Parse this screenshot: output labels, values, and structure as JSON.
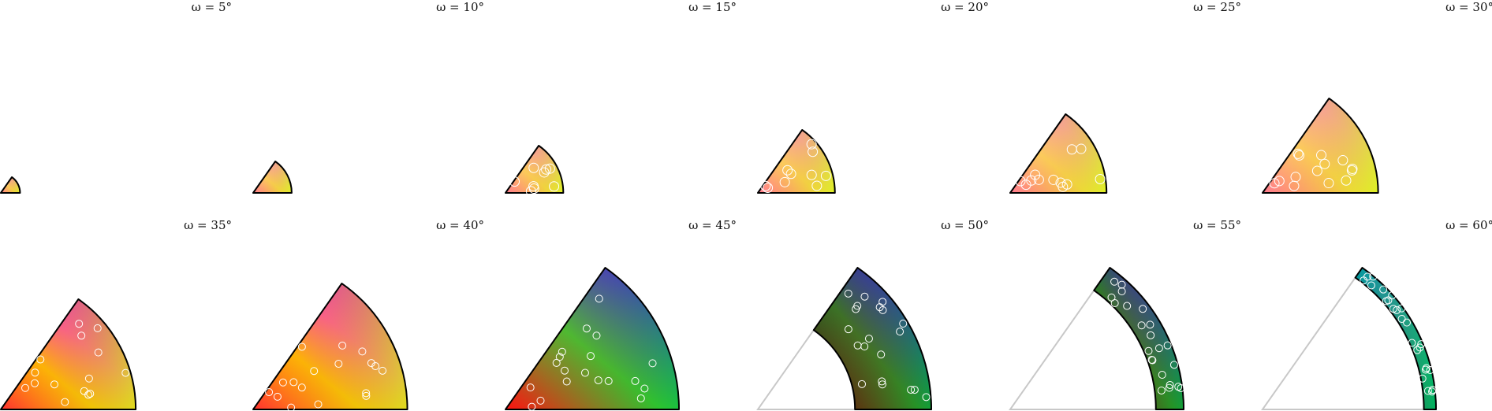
{
  "chart_data": {
    "type": "scatter",
    "description_of_layout": "grid",
    "grid_rows": 2,
    "grid_cols": 6,
    "panels": [
      {
        "title": "ω = 5°",
        "omega": 5,
        "points": []
      },
      {
        "title": "ω = 10°",
        "omega": 10,
        "points": []
      },
      {
        "title": "ω = 15°",
        "omega": 15,
        "points": []
      },
      {
        "title": "ω = 20°",
        "omega": 20,
        "points": []
      },
      {
        "title": "ω = 25°",
        "omega": 25,
        "points": []
      },
      {
        "title": "ω = 30°",
        "omega": 30,
        "points": []
      },
      {
        "title": "ω = 35°",
        "omega": 35,
        "points": []
      },
      {
        "title": "ω = 40°",
        "omega": 40,
        "points": []
      },
      {
        "title": "ω = 45°",
        "omega": 45,
        "points": []
      },
      {
        "title": "ω = 50°",
        "omega": 50,
        "points": []
      },
      {
        "title": "ω = 55°",
        "omega": 55,
        "points": []
      },
      {
        "title": "ω = 60°",
        "omega": 60,
        "points": []
      }
    ],
    "title": "",
    "xlabel": "",
    "ylabel": "",
    "grid": false,
    "legend": "none"
  }
}
